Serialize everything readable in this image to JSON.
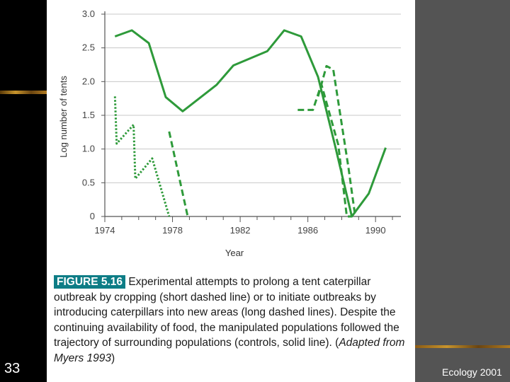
{
  "slide": {
    "number": "33",
    "footer": "Ecology 2001"
  },
  "colors": {
    "series": "#2e9a3a",
    "band_left": "#000000",
    "band_right": "#545454",
    "figure_label_bg": "#0d7d86"
  },
  "caption": {
    "label": "FIGURE 5.16",
    "text": "Experimental attempts to prolong a tent caterpillar outbreak by cropping (short dashed line) or to initiate outbreaks by introducing caterpillars into new areas (long dashed lines). Despite the continuing availability of food, the manipulated populations followed the trajectory of surrounding populations (controls, solid line). (",
    "citation": "Adapted from Myers 1993",
    "end": ")"
  },
  "chart_data": {
    "type": "line",
    "title": "",
    "xlabel": "Year",
    "ylabel": "Log number of tents",
    "xlim": [
      1974,
      1991.5
    ],
    "ylim": [
      0,
      3.0
    ],
    "xticks": [
      1974,
      1978,
      1982,
      1986,
      1990
    ],
    "yticks": [
      0,
      0.5,
      1.0,
      1.5,
      2.0,
      2.5,
      3.0
    ],
    "ytick_labels": [
      "0",
      "0.5",
      "1.0",
      "1.5",
      "2.0",
      "2.5",
      "3.0"
    ],
    "grid": true,
    "series": [
      {
        "style": "solid",
        "x": [
          1974.6,
          1975.6,
          1976.6,
          1977.6,
          1978.6,
          1980.6,
          1981.6,
          1983.6,
          1984.6,
          1985.6,
          1986.6,
          1987.6,
          1988.6,
          1989.6,
          1990.6
        ],
        "y": [
          2.67,
          2.76,
          2.57,
          1.77,
          1.56,
          1.95,
          2.24,
          2.45,
          2.76,
          2.67,
          2.07,
          1.06,
          0.0,
          0.34,
          1.02
        ]
      },
      {
        "style": "short-dash",
        "x": [
          1974.6,
          1974.7,
          1975.7,
          1975.8,
          1976.8,
          1977.8
        ],
        "y": [
          1.78,
          1.08,
          1.36,
          0.56,
          0.86,
          0.0
        ]
      },
      {
        "style": "long-dash",
        "x": [
          1977.8,
          1978.9
        ],
        "y": [
          1.26,
          0.0
        ]
      },
      {
        "style": "long-dash",
        "x": [
          1985.4,
          1986.3,
          1986.8,
          1987.8,
          1988.3,
          1988.6
        ],
        "y": [
          1.58,
          1.58,
          1.96,
          1.06,
          0.0,
          0.0
        ]
      },
      {
        "style": "long-dash",
        "x": [
          1986.6,
          1987.1,
          1987.5,
          1988.4,
          1988.8
        ],
        "y": [
          1.78,
          2.23,
          2.18,
          0.72,
          0.0
        ]
      }
    ]
  }
}
